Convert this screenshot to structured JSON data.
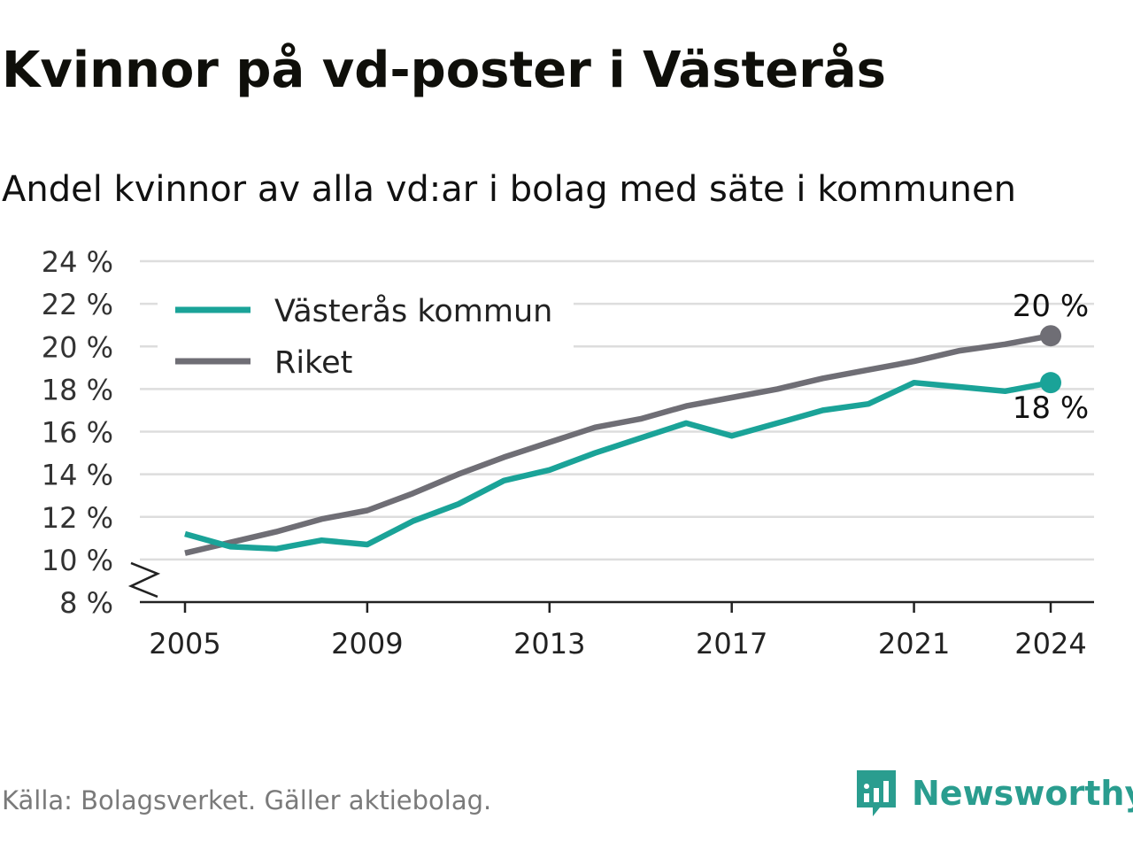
{
  "title": "Kvinnor på vd-poster i Västerås",
  "subtitle": "Andel kvinnor av alla vd:ar i bolag med säte i kommunen",
  "source": "Källa: Bolagsverket. Gäller aktiebolag.",
  "brand": {
    "name": "Newsworthy",
    "icon": "newsworthy-logo-icon"
  },
  "colors": {
    "vasteras": "#1aa398",
    "riket": "#6f6e75",
    "grid": "#dddddd",
    "axis": "#222222"
  },
  "chart_data": {
    "type": "line",
    "title": "Kvinnor på vd-poster i Västerås",
    "subtitle": "Andel kvinnor av alla vd:ar i bolag med säte i kommunen",
    "x": [
      2005,
      2006,
      2007,
      2008,
      2009,
      2010,
      2011,
      2012,
      2013,
      2014,
      2015,
      2016,
      2017,
      2018,
      2019,
      2020,
      2021,
      2022,
      2023,
      2024
    ],
    "x_ticks": [
      2005,
      2009,
      2013,
      2017,
      2021,
      2024
    ],
    "ylim": [
      8,
      24
    ],
    "y_ticks": [
      8,
      10,
      12,
      14,
      16,
      18,
      20,
      22,
      24
    ],
    "y_tick_labels": [
      "8 %",
      "10 %",
      "12 %",
      "14 %",
      "16 %",
      "18 %",
      "20 %",
      "22 %",
      "24 %"
    ],
    "axis_break": true,
    "grid": true,
    "legend_position": "top-left",
    "series": [
      {
        "name": "Västerås kommun",
        "color": "#1aa398",
        "values": [
          11.2,
          10.6,
          10.5,
          10.9,
          10.7,
          11.8,
          12.6,
          13.7,
          14.2,
          15.0,
          15.7,
          16.4,
          15.8,
          16.4,
          17.0,
          17.3,
          18.3,
          18.1,
          17.9,
          18.3
        ],
        "end_label": "18 %",
        "end_label_position": "below"
      },
      {
        "name": "Riket",
        "color": "#6f6e75",
        "values": [
          10.3,
          10.8,
          11.3,
          11.9,
          12.3,
          13.1,
          14.0,
          14.8,
          15.5,
          16.2,
          16.6,
          17.2,
          17.6,
          18.0,
          18.5,
          18.9,
          19.3,
          19.8,
          20.1,
          20.5
        ],
        "end_label": "20 %",
        "end_label_position": "above"
      }
    ]
  }
}
